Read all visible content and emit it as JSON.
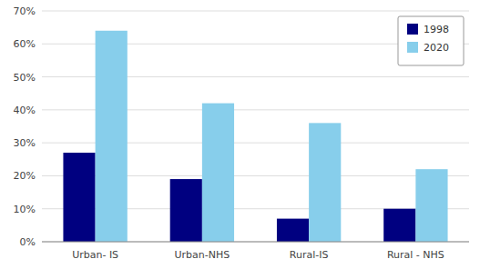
{
  "chart_data": {
    "type": "bar",
    "categories": [
      "Urban- IS",
      "Urban-NHS",
      "Rural-IS",
      "Rural - NHS"
    ],
    "series": [
      {
        "name": "1998",
        "color": "#000080",
        "values": [
          0.27,
          0.19,
          0.07,
          0.1
        ]
      },
      {
        "name": "2020",
        "color": "#87CEEB",
        "values": [
          0.64,
          0.42,
          0.36,
          0.22
        ]
      }
    ],
    "ylim": [
      0,
      0.7
    ],
    "yticks": [
      {
        "value": 0.0,
        "label": "0%"
      },
      {
        "value": 0.1,
        "label": "10%"
      },
      {
        "value": 0.2,
        "label": "20%"
      },
      {
        "value": 0.3,
        "label": "30%"
      },
      {
        "value": 0.4,
        "label": "40%"
      },
      {
        "value": 0.5,
        "label": "50%"
      },
      {
        "value": 0.6,
        "label": "60%"
      },
      {
        "value": 0.7,
        "label": "70%"
      }
    ],
    "grid": true,
    "legend": "upper right"
  }
}
